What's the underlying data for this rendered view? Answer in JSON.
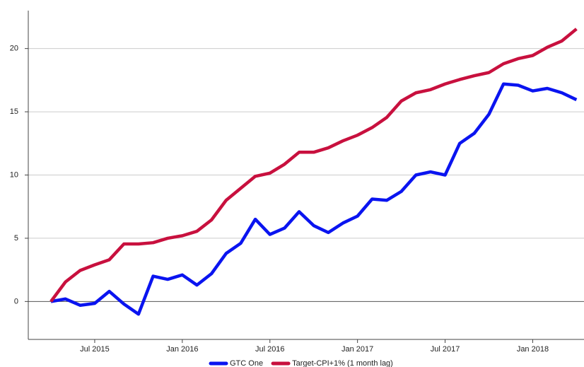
{
  "chart_data": {
    "type": "line",
    "x": [
      "2015-04",
      "2015-05",
      "2015-06",
      "2015-07",
      "2015-08",
      "2015-09",
      "2015-10",
      "2015-11",
      "2015-12",
      "2016-01",
      "2016-02",
      "2016-03",
      "2016-04",
      "2016-05",
      "2016-06",
      "2016-07",
      "2016-08",
      "2016-09",
      "2016-10",
      "2016-11",
      "2016-12",
      "2017-01",
      "2017-02",
      "2017-03",
      "2017-04",
      "2017-05",
      "2017-06",
      "2017-07",
      "2017-08",
      "2017-09",
      "2017-10",
      "2017-11",
      "2017-12",
      "2018-01",
      "2018-02",
      "2018-03",
      "2018-04"
    ],
    "series": [
      {
        "name": "GTC One",
        "color": "#0a14f0",
        "values": [
          0,
          0.2,
          -0.3,
          -0.15,
          0.8,
          -0.2,
          -1.0,
          2.0,
          1.75,
          2.1,
          1.3,
          2.2,
          3.8,
          4.6,
          6.5,
          5.3,
          5.8,
          7.1,
          6.0,
          5.45,
          6.2,
          6.75,
          8.1,
          8.0,
          8.7,
          10.0,
          10.25,
          10.0,
          12.5,
          13.3,
          14.8,
          17.2,
          17.1,
          16.65,
          16.85,
          16.5,
          15.95
        ]
      },
      {
        "name": "Target-CPI+1% (1 month lag)",
        "color": "#c8103e",
        "values": [
          0,
          1.55,
          2.45,
          2.9,
          3.3,
          4.55,
          4.55,
          4.65,
          5.0,
          5.2,
          5.55,
          6.45,
          8.0,
          8.95,
          9.9,
          10.15,
          10.85,
          11.8,
          11.8,
          12.15,
          12.7,
          13.15,
          13.75,
          14.55,
          15.85,
          16.5,
          16.75,
          17.2,
          17.55,
          17.85,
          18.1,
          18.8,
          19.2,
          19.45,
          20.1,
          20.6,
          21.55
        ]
      }
    ],
    "xticks": [
      {
        "value": "2015-07",
        "label": "Jul 2015"
      },
      {
        "value": "2016-01",
        "label": "Jan 2016"
      },
      {
        "value": "2016-07",
        "label": "Jul 2016"
      },
      {
        "value": "2017-01",
        "label": "Jan 2017"
      },
      {
        "value": "2017-07",
        "label": "Jul 2017"
      },
      {
        "value": "2018-01",
        "label": "Jan 2018"
      }
    ],
    "ylim": [
      -3,
      23
    ],
    "yticks": [
      0,
      5,
      10,
      15,
      20
    ],
    "grid": true,
    "legend": "bottom"
  }
}
